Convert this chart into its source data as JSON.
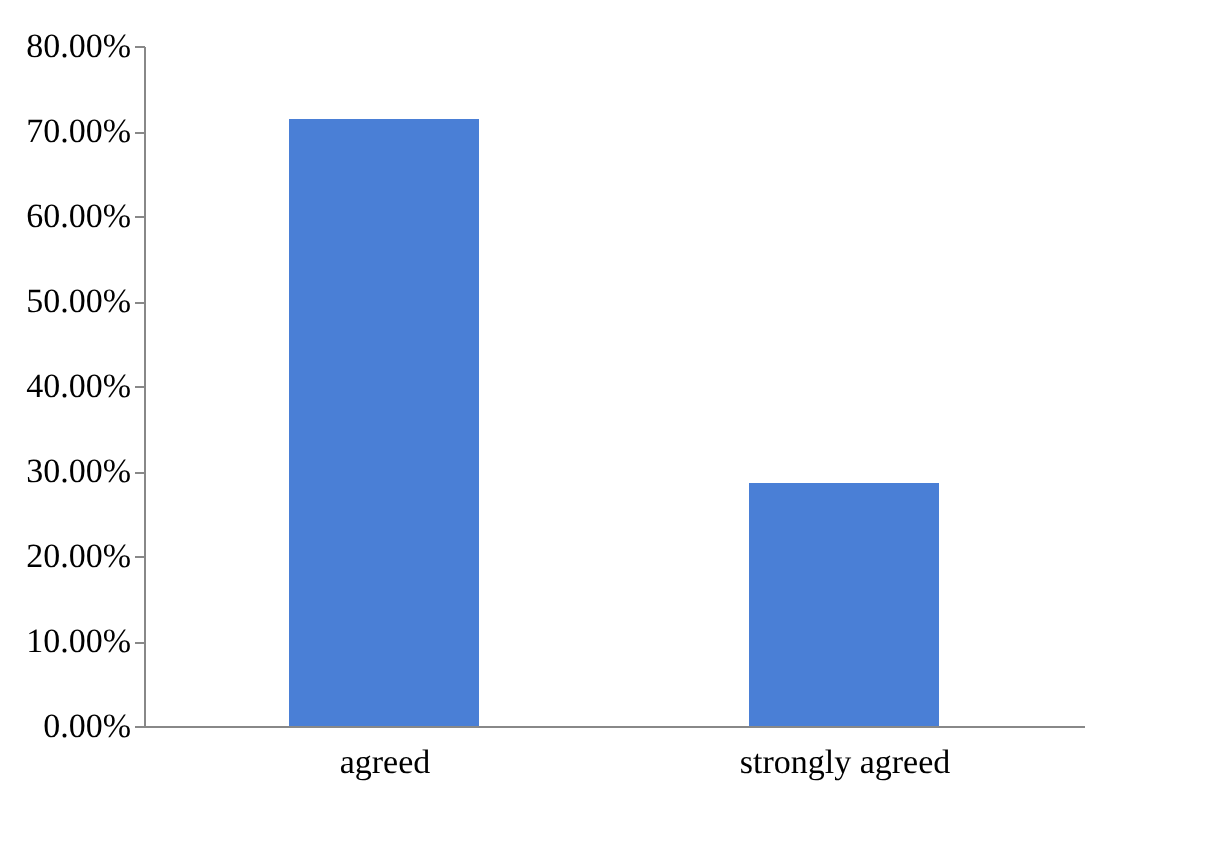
{
  "chart_data": {
    "type": "bar",
    "categories": [
      "agreed",
      "strongly agreed"
    ],
    "values": [
      71.4,
      28.6
    ],
    "color": "#4a7fd6",
    "ylim": [
      0,
      80
    ],
    "yticks": [
      {
        "value": 0,
        "label": "0.00%"
      },
      {
        "value": 10,
        "label": "10.00%"
      },
      {
        "value": 20,
        "label": "20.00%"
      },
      {
        "value": 30,
        "label": "30.00%"
      },
      {
        "value": 40,
        "label": "40.00%"
      },
      {
        "value": 50,
        "label": "50.00%"
      },
      {
        "value": 60,
        "label": "60.00%"
      },
      {
        "value": 70,
        "label": "70.00%"
      },
      {
        "value": 80,
        "label": "80.00%"
      }
    ],
    "grid": false
  }
}
